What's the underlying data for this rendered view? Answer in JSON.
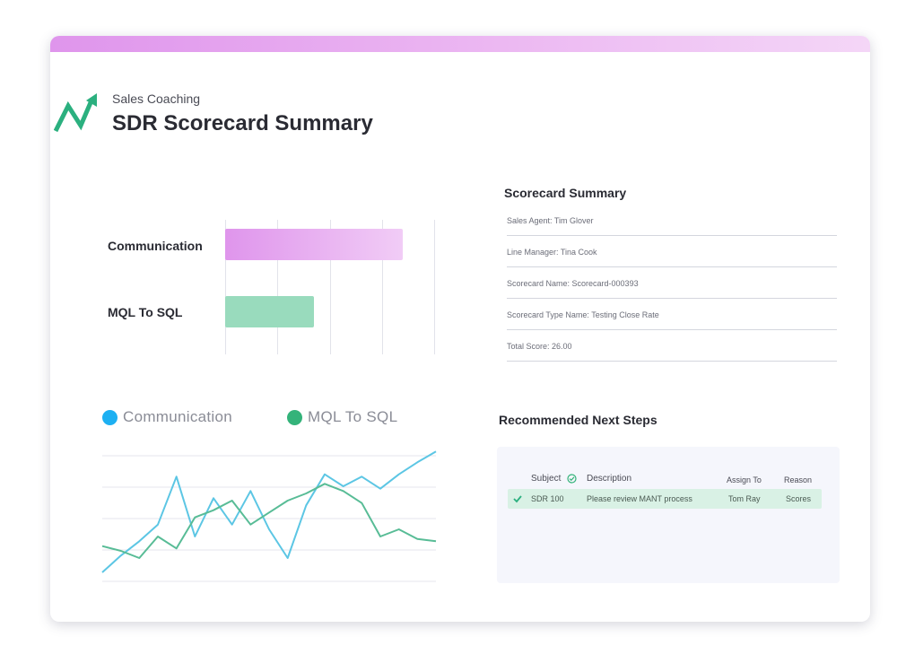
{
  "header": {
    "subtitle": "Sales Coaching",
    "title": "SDR Scorecard Summary"
  },
  "bar_chart": {
    "chart_data": {
      "type": "bar",
      "orientation": "horizontal",
      "categories": [
        "Communication",
        "MQL To SQL"
      ],
      "values": [
        3.4,
        1.7
      ],
      "xlim": [
        0,
        4
      ],
      "grid": true
    },
    "colors": [
      "#df95ec",
      "#99dbbd"
    ]
  },
  "summary": {
    "title": "Scorecard Summary",
    "fields": [
      "Sales Agent: Tim Glover",
      "Line Manager: Tina Cook",
      "Scorecard Name: Scorecard-000393",
      "Scorecard Type Name: Testing Close Rate",
      "Total Score: 26.00"
    ]
  },
  "line_chart": {
    "chart_data": {
      "type": "line",
      "x": [
        0,
        1,
        2,
        3,
        4,
        5,
        6,
        7,
        8,
        9,
        10,
        11,
        12,
        13,
        14,
        15,
        16,
        17,
        18
      ],
      "series": [
        {
          "name": "Communication",
          "values": [
            0,
            14,
            26,
            40,
            80,
            30,
            62,
            40,
            68,
            36,
            12,
            56,
            82,
            72,
            80,
            70,
            82,
            92,
            101
          ]
        },
        {
          "name": "MQL To SQL",
          "values": [
            22,
            18,
            12,
            30,
            20,
            46,
            52,
            60,
            40,
            50,
            60,
            66,
            74,
            68,
            58,
            30,
            36,
            28,
            26
          ]
        }
      ],
      "ylim": [
        0,
        105
      ],
      "legend": "top",
      "grid": true
    },
    "colors": [
      "#5cc6e4",
      "#58bc96"
    ],
    "legend_colors": [
      "#1db0f2",
      "#34b37a"
    ]
  },
  "next_steps": {
    "title": "Recommended Next Steps",
    "columns": [
      "Subject",
      "Description",
      "Assign To",
      "Reason"
    ],
    "rows": [
      {
        "subject": "SDR 100",
        "description": "Please review MANT process",
        "assign_to": "Tom Ray",
        "reason": "Scores"
      }
    ]
  },
  "icons": {
    "logo": "trend-arrow-logo-icon",
    "check": "check-icon"
  }
}
